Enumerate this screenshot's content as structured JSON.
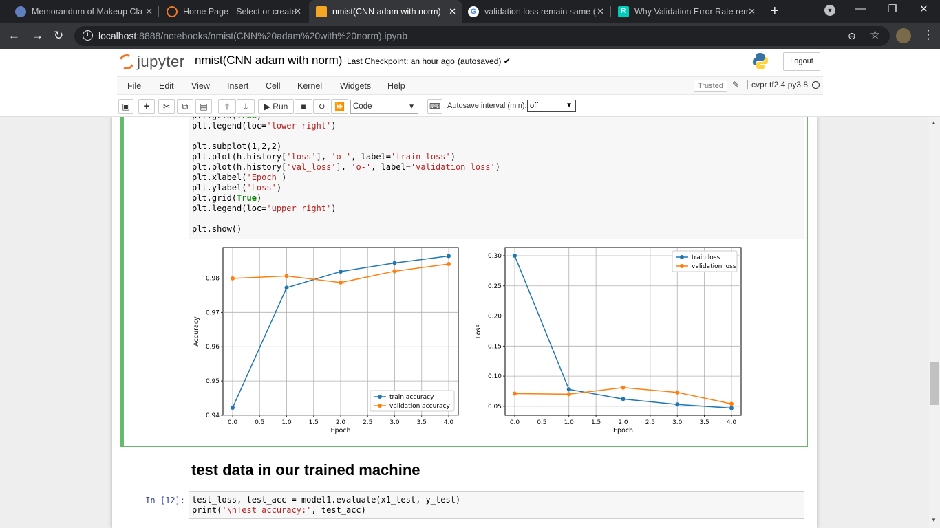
{
  "browser": {
    "tabs": [
      {
        "title": "Memorandum of Makeup Cla",
        "icon": "shield-icon"
      },
      {
        "title": "Home Page - Select or create",
        "icon": "jupyter-icon"
      },
      {
        "title": "nmist(CNN adam with norm)",
        "icon": "notebook-icon"
      },
      {
        "title": "validation loss remain same (",
        "icon": "google-icon"
      },
      {
        "title": "Why Validation Error Rate rem",
        "icon": "researchgate-icon"
      }
    ],
    "url_host": "localhost",
    "url_rest": ":8888/notebooks/nmist(CNN%20adam%20with%20norm).ipynb"
  },
  "jupyter": {
    "logo_text": "jupyter",
    "notebook_name": "nmist(CNN adam with norm)",
    "checkpoint": "Last Checkpoint: an hour ago",
    "autosave_status": "(autosaved)",
    "logout": "Logout",
    "menu": [
      "File",
      "Edit",
      "View",
      "Insert",
      "Cell",
      "Kernel",
      "Widgets",
      "Help"
    ],
    "trusted": "Trusted",
    "kernel": "cvpr tf2.4 py3.8",
    "toolbar": {
      "run": "Run",
      "cell_type": "Code",
      "autosave_label": "Autosave interval (min):",
      "autosave_value": "off"
    }
  },
  "cell1": {
    "lines": [
      "plt.grid(True)",
      "plt.legend(loc='lower right')",
      "",
      "plt.subplot(1,2,2)",
      "plt.plot(h.history['loss'], 'o-', label='train loss')",
      "plt.plot(h.history['val_loss'], 'o-', label='validation loss')",
      "plt.xlabel('Epoch')",
      "plt.ylabel('Loss')",
      "plt.grid(True)",
      "plt.legend(loc='upper right')",
      "",
      "plt.show()"
    ]
  },
  "markdown_heading": "test data in our trained machine",
  "cell2": {
    "prompt": "In [12]:",
    "lines": [
      "test_loss, test_acc = model1.evaluate(x1_test, y_test)",
      "print('\\nTest accuracy:', test_acc)"
    ]
  },
  "chart_data": [
    {
      "type": "line",
      "xlabel": "Epoch",
      "ylabel": "Accuracy",
      "xlim": [
        0,
        4
      ],
      "ylim": [
        0.94,
        0.9865
      ],
      "xticks": [
        "0.0",
        "0.5",
        "1.0",
        "1.5",
        "2.0",
        "2.5",
        "3.0",
        "3.5",
        "4.0"
      ],
      "yticks": [
        "0.94",
        "0.95",
        "0.96",
        "0.97",
        "0.98"
      ],
      "grid": true,
      "legend": "lower right",
      "x": [
        0,
        1,
        2,
        3,
        4
      ],
      "series": [
        {
          "name": "train accuracy",
          "values": [
            0.9422,
            0.9772,
            0.9819,
            0.9844,
            0.9864
          ],
          "color": "#1f77b4"
        },
        {
          "name": "validation accuracy",
          "values": [
            0.9799,
            0.9806,
            0.9787,
            0.982,
            0.9841
          ],
          "color": "#ff7f0e"
        }
      ]
    },
    {
      "type": "line",
      "xlabel": "Epoch",
      "ylabel": "Loss",
      "xlim": [
        0,
        4
      ],
      "ylim": [
        0.035,
        0.3
      ],
      "xticks": [
        "0.0",
        "0.5",
        "1.0",
        "1.5",
        "2.0",
        "2.5",
        "3.0",
        "3.5",
        "4.0"
      ],
      "yticks": [
        "0.05",
        "0.10",
        "0.15",
        "0.20",
        "0.25",
        "0.30"
      ],
      "grid": true,
      "legend": "upper right",
      "x": [
        0,
        1,
        2,
        3,
        4
      ],
      "series": [
        {
          "name": "train loss",
          "values": [
            0.3,
            0.078,
            0.062,
            0.053,
            0.047
          ],
          "color": "#1f77b4"
        },
        {
          "name": "validation loss",
          "values": [
            0.071,
            0.07,
            0.081,
            0.073,
            0.054
          ],
          "color": "#ff7f0e"
        }
      ]
    }
  ]
}
